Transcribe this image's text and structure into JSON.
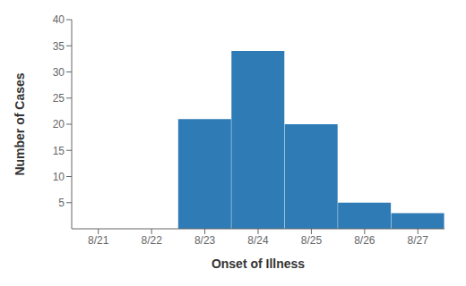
{
  "chart_data": {
    "type": "bar",
    "categories": [
      "8/21",
      "8/22",
      "8/23",
      "8/24",
      "8/25",
      "8/26",
      "8/27"
    ],
    "values": [
      0,
      0,
      21,
      34,
      20,
      5,
      3
    ],
    "color": "#2E7BB5",
    "xlabel": "Onset of Illness",
    "ylabel": "Number of Cases",
    "ylim": [
      0,
      40
    ],
    "yticks": [
      5,
      10,
      15,
      20,
      25,
      30,
      35,
      40
    ],
    "grid": false
  }
}
